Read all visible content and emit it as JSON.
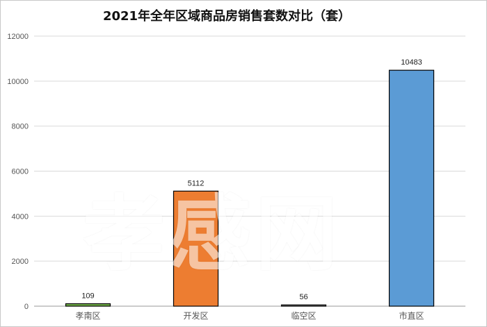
{
  "chart_data": {
    "type": "bar",
    "title": "2021年全年区域商品房销售套数对比（套）",
    "xlabel": "",
    "ylabel": "",
    "categories": [
      "孝南区",
      "开发区",
      "临空区",
      "市直区"
    ],
    "values": [
      109,
      5112,
      56,
      10483
    ],
    "data_labels": [
      "109",
      "5112",
      "56",
      "10483"
    ],
    "bar_colors": [
      "#70ad47",
      "#ed7d31",
      "#7f7f7f",
      "#5b9bd5"
    ],
    "ylim": [
      0,
      12000
    ],
    "yticks": [
      0,
      2000,
      4000,
      6000,
      8000,
      10000,
      12000
    ],
    "ytick_labels": [
      "0",
      "2000",
      "4000",
      "6000",
      "8000",
      "10000",
      "12000"
    ],
    "grid": true,
    "legend": "none"
  },
  "watermark": "孝感网"
}
